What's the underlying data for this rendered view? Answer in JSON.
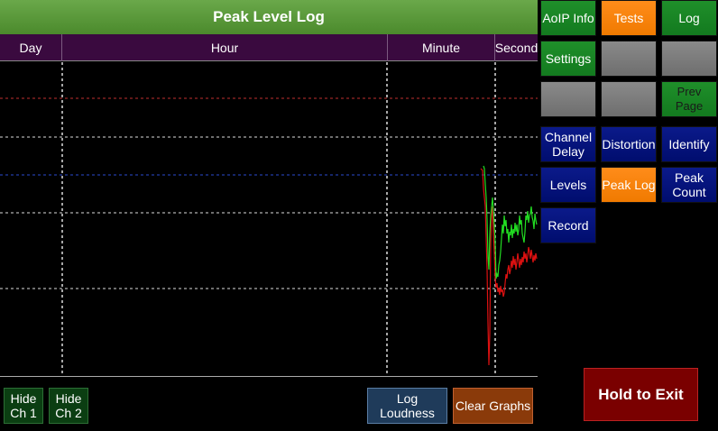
{
  "header": {
    "title": "Peak Level Log"
  },
  "columns": {
    "day": "Day",
    "hour": "Hour",
    "minute": "Minute",
    "second": "Second"
  },
  "nav_buttons": {
    "aoip_info": "AoIP Info",
    "tests": "Tests",
    "log": "Log",
    "settings": "Settings",
    "prev_page": "Prev Page",
    "channel_delay": "Channel\nDelay",
    "distortion": "Distortion",
    "identify": "Identify",
    "levels": "Levels",
    "peak_log": "Peak Log",
    "peak_count": "Peak\nCount",
    "record": "Record"
  },
  "controls": {
    "hide_ch1": "Hide\nCh 1",
    "hide_ch2": "Hide\nCh 2",
    "log_loudness": "Log Loudness",
    "clear_graphs": "Clear Graphs",
    "hold_to_exit": "Hold to Exit"
  },
  "colors": {
    "channel_1": "#22dd22",
    "channel_2": "#dd1111",
    "title_bar": "#5a9a3a",
    "header_row": "#3a0a3f",
    "active_button": "#ff8c1a"
  }
}
